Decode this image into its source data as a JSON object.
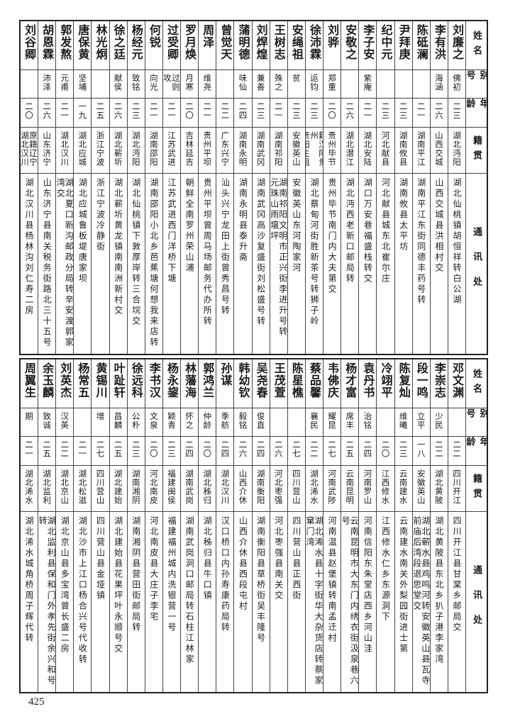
{
  "headers": {
    "name": "姓名",
    "alias": "别号",
    "age": "年龄",
    "native": "籍贯",
    "address": "通讯处"
  },
  "tables": [
    {
      "rows": [
        {
          "name": "刘廉之",
          "alias": "佛初",
          "age": "二三",
          "native": "湖北沔阳",
          "address": "湖北仙桃镇胡恒祥转白公湖"
        },
        {
          "name": "李有洪",
          "alias": "海涵",
          "age": "二六",
          "native": "山西交城",
          "address": "山西交城县洪相村交"
        },
        {
          "name": "陈砥澜",
          "alias": "",
          "age": "二一",
          "native": "湖南平江",
          "address": "湖南平江东街同德丰药号转"
        },
        {
          "name": "尹拜庚",
          "alias": "",
          "age": "二三",
          "native": "湖南攸县",
          "address": "湖南攸县太平坊"
        },
        {
          "name": "纪中元",
          "alias": "",
          "age": "二三",
          "native": "河北献县",
          "address": "河北献县城东北崔尔庄"
        },
        {
          "name": "李子安",
          "alias": "紫庵",
          "age": "二一",
          "native": "湖北安陆",
          "address": "湖口万安巷福盛栈转交"
        },
        {
          "name": "安敬之",
          "alias": "",
          "age": "二六",
          "native": "湖北潜江",
          "address": "湖北沔西老新口邮局转"
        },
        {
          "name": "刘骅",
          "alias": "郑重",
          "age": "二〇",
          "native": "贵州毕节",
          "address": "贵州毕节南门内大夫第交"
        },
        {
          "name": "徐沛霖",
          "alias": "运钧",
          "age": "二三",
          "native": "籍汉阳贵州\n贵阳生祖",
          "address": "湖北蔡甸河街胜新茶号转狮子岭"
        },
        {
          "name": "安绳祖",
          "alias": "贫",
          "age": "二三",
          "native": "安徽英山",
          "address": "安徽英山东河陶家河"
        },
        {
          "name": "王树志",
          "alias": "殊之",
          "age": "二一",
          "native": "湖南祁阳",
          "address": "湖南祁阳文明市正兴街李进升号转\n元珠山雨壇坪"
        },
        {
          "name": "刘焊煌",
          "alias": "兼善",
          "age": "二三",
          "native": "湖南武冈",
          "address": "湖南武冈高沙复盛街刘松盛号转"
        },
        {
          "name": "蒲明德",
          "alias": "味仙",
          "age": "二四",
          "native": "湖南永明",
          "address": "湖南永明县泰升斋"
        },
        {
          "name": "曾觉天",
          "alias": "",
          "age": "二二",
          "native": "广东兴宁",
          "address": "汕头兴宁龙田上街曾秀昌号转"
        },
        {
          "name": "周泽",
          "alias": "维尧",
          "age": "二一",
          "native": "贵州平坝",
          "address": "贵州平坝曾周马场邮务代办所转"
        },
        {
          "name": "罗月焕",
          "alias": "月寒",
          "age": "二〇",
          "native": "吉林延吉",
          "address": "朝鲜全南罗州荣山浦"
        },
        {
          "name": "过受卿",
          "alias": "过则攻",
          "age": "二一",
          "native": "江苏武进",
          "address": "江苏武进西门洋桥下塘"
        },
        {
          "name": "何锐",
          "alias": "向光",
          "age": "二一",
          "native": "湖南邵阳",
          "address": "湖南邵阳小北乡芭蕉塘何想我来店转"
        },
        {
          "name": "杨经元",
          "alias": "致铭",
          "age": "二三",
          "native": "湖北沔阳",
          "address": "湖北仙桃镇下敦厚岸转三合垸交"
        },
        {
          "name": "徐之廷",
          "alias": "献侯",
          "age": "二六",
          "native": "湖北蕲圻",
          "address": "湖北蕲圻黄龙镇南南洲新村交"
        },
        {
          "name": "林光炯",
          "alias": "",
          "age": "二五",
          "native": "浙江宁波",
          "address": "浙江宁波冷静街"
        },
        {
          "name": "唐保黄",
          "alias": "坚埔",
          "age": "一九",
          "native": "湖北应城",
          "address": "湖北应城鲁板堤唐家坝"
        },
        {
          "name": "郭发熬",
          "alias": "元甫",
          "age": "二一",
          "native": "湖北汉川",
          "address": "湖北夏口新沟邮政分局转辛安渡郭家湾交"
        },
        {
          "name": "胡恩霖",
          "alias": "沛泽",
          "age": "二六",
          "native": "山东济宁",
          "address": "山东济宁县南关税务街路北三十五号"
        },
        {
          "name": "刘谷卿",
          "alias": "",
          "age": "二〇",
          "native": "原籍辽宁\n湖北汉川",
          "address": "湖北汉川县杨林沟刘仁寿二房"
        }
      ]
    },
    {
      "rows": [
        {
          "name": "邓文渊",
          "alias": "",
          "age": "二二",
          "native": "四川开江",
          "address": "四川开江县甘棠乡邮局交"
        },
        {
          "name": "李崇志",
          "alias": "少民",
          "age": "二二",
          "native": "湖北黄陂",
          "address": "湖北黄陂县东北乡扒子港李家湾"
        },
        {
          "name": "段一鸣",
          "alias": "立平",
          "age": "一八",
          "native": "安徽英山",
          "address": "湖北蕲水县鸡鸣河转安徽英山县瓦寺\n前庙后湾段退思堂交"
        },
        {
          "name": "陈复灿",
          "alias": "维曦",
          "age": "二三",
          "native": "云南建水",
          "address": "云南建水南关外梨园街进士第"
        },
        {
          "name": "冷翊平",
          "alias": "",
          "age": "二〇",
          "native": "江西修水",
          "address": "江西修水仁乡东源洞下"
        },
        {
          "name": "袁丹书",
          "alias": "治铭",
          "age": "二四",
          "native": "河南罗山",
          "address": "河南信阳东朱堂店西乡河山洼"
        },
        {
          "name": "杨才富",
          "alias": "席丰",
          "age": "二五",
          "native": "云南昆明",
          "address": "云南昆明市大东门内绣衣街汲泉巷六号"
        },
        {
          "name": "韦佛庆",
          "alias": "耀昆",
          "age": "二七",
          "native": "河南武陟",
          "address": "河南温县赵堡镇转南孟迁村"
        },
        {
          "name": "蔡品馨",
          "alias": "襄民",
          "age": "二二",
          "native": "湖北浠水",
          "address": "湖北浠水县十字街华大杂货店转蔡家窠门湾"
        },
        {
          "name": "陈星樵",
          "alias": "",
          "age": "二七",
          "native": "四川营山",
          "address": "四川营山县正西街"
        },
        {
          "name": "王茂萱",
          "alias": "",
          "age": "二六",
          "native": "河北枣强",
          "address": "河北枣强县南关交"
        },
        {
          "name": "吴尧春",
          "alias": "俊直",
          "age": "二四",
          "native": "湖南衡阳",
          "address": "湖南衡阳县草桥街吴丰隆号"
        },
        {
          "name": "韩幼钦",
          "alias": "毅铭",
          "age": "二六",
          "native": "山西介休",
          "address": "山西介休县西段屯村"
        },
        {
          "name": "孙谋",
          "alias": "季舫",
          "age": "二四",
          "native": "湖北汉川",
          "address": "汉口桥口内孙寿康药局转"
        },
        {
          "name": "郭鸿兰",
          "alias": "仲龄",
          "age": "二〇",
          "native": "湖北秭归",
          "address": "湖北秭归县牛口镇"
        },
        {
          "name": "林藩海",
          "alias": "怀之",
          "age": "二四",
          "native": "湖南武岗",
          "address": "湖南武岗洞口邮局转石柱江林家"
        },
        {
          "name": "杨永鋆",
          "alias": "颖青",
          "age": "二三",
          "native": "福建闽侯",
          "address": "福建福州城内洗银营一号"
        },
        {
          "name": "李书汉",
          "alias": "文泉",
          "age": "二〇",
          "native": "河北南皮",
          "address": "河北南皮县大庄子李宅"
        },
        {
          "name": "徐远科",
          "alias": "公朴",
          "age": "二三",
          "native": "湖南湘阴",
          "address": "湖南湘阴县营田街邮局转"
        },
        {
          "name": "叶趾轩",
          "alias": "昌麟",
          "age": "二五",
          "native": "湖北建始",
          "address": "湖北建始县花果坪叶永顺号交"
        },
        {
          "name": "黄锡川",
          "alias": "增",
          "age": "二七",
          "native": "四川营山",
          "address": "四川营山县金垭镇"
        },
        {
          "name": "杨常五",
          "alias": "",
          "age": "二一",
          "native": "湖北松滋",
          "address": "湖北沙市上江口杨合兴号代收转"
        },
        {
          "name": "刘英杰",
          "alias": "汉英",
          "age": "二二",
          "native": "湖北京山",
          "address": "湖北京山县多宝湾曾长盛二房"
        },
        {
          "name": "余玉麟",
          "alias": "致诚",
          "age": "二五",
          "native": "湖北监利",
          "address": "湖北监利县保和门外孝先街余兴和号转"
        },
        {
          "name": "周翼生",
          "alias": "期",
          "age": "二一",
          "native": "湖北浠水",
          "address": "湖北浠水城角桥周子辉代转"
        }
      ]
    }
  ],
  "page_number": "425"
}
